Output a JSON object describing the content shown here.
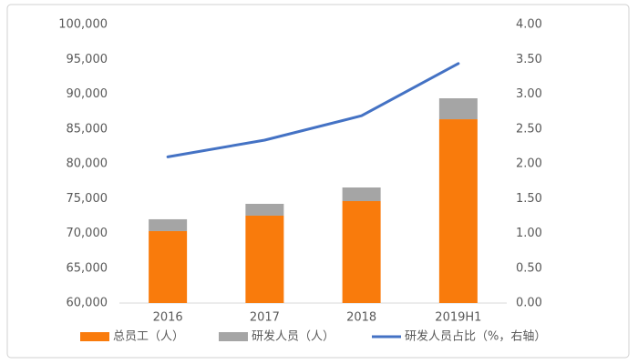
{
  "chart_data": {
    "type": "bar",
    "stacked": true,
    "categories": [
      "2016",
      "2017",
      "2018",
      "2019H1"
    ],
    "series": [
      {
        "name": "总员工（人）",
        "color": "#f97b0c",
        "values": [
          70330,
          72550,
          74640,
          86400
        ]
      },
      {
        "name": "研发人员（人）",
        "color": "#a5a5a5",
        "values": [
          1700,
          1700,
          1960,
          3010
        ]
      },
      {
        "name": "研发人员占比（%，右轴）",
        "type": "line",
        "axis": "y2",
        "color": "#4472c4",
        "values": [
          2.1,
          2.34,
          2.69,
          3.44
        ]
      }
    ],
    "ylim": [
      60000,
      100000
    ],
    "yticks": [
      {
        "value": 60000,
        "label": "60,000"
      },
      {
        "value": 65000,
        "label": "65,000"
      },
      {
        "value": 70000,
        "label": "70,000"
      },
      {
        "value": 75000,
        "label": "75,000"
      },
      {
        "value": 80000,
        "label": "80,000"
      },
      {
        "value": 85000,
        "label": "85,000"
      },
      {
        "value": 90000,
        "label": "90,000"
      },
      {
        "value": 95000,
        "label": "95,000"
      },
      {
        "value": 100000,
        "label": "100,000"
      }
    ],
    "y2lim": [
      0,
      4
    ],
    "y2ticks": [
      {
        "value": 0,
        "label": "0.00"
      },
      {
        "value": 0.5,
        "label": "0.50"
      },
      {
        "value": 1,
        "label": "1.00"
      },
      {
        "value": 1.5,
        "label": "1.50"
      },
      {
        "value": 2,
        "label": "2.00"
      },
      {
        "value": 2.5,
        "label": "2.50"
      },
      {
        "value": 3,
        "label": "3.00"
      },
      {
        "value": 3.5,
        "label": "3.50"
      },
      {
        "value": 4,
        "label": "4.00"
      }
    ],
    "grid": false,
    "legend": "bottom"
  }
}
